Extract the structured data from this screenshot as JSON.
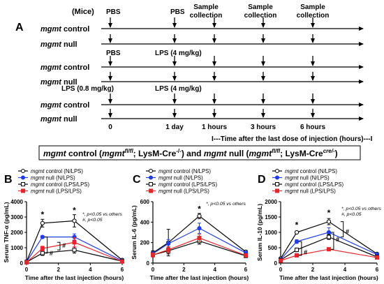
{
  "figure": {
    "panel_a_label": "A",
    "mice_label": "(Mice)",
    "rows": [
      {
        "name": "mgmt",
        "suffix": " control"
      },
      {
        "name": "mgmt",
        "suffix": " null"
      },
      {
        "name": "mgmt",
        "suffix": " control"
      },
      {
        "name": "mgmt",
        "suffix": " null"
      },
      {
        "name": "mgmt",
        "suffix": " control"
      },
      {
        "name": "mgmt",
        "suffix": " null"
      }
    ],
    "schedule_labels": {
      "pbs_top_1": "PBS",
      "pbs_top_2": "PBS",
      "sample_1a": "Sample",
      "sample_1b": "collection",
      "sample_2a": "Sample",
      "sample_2b": "collection",
      "sample_3a": "Sample",
      "sample_3b": "collection",
      "pbs_mid": "PBS",
      "lps_4_mid": "LPS (4 mg/kg)",
      "lps_08": "LPS (0.8 mg/kg)",
      "lps_4_bot": "LPS (4 mg/kg)"
    },
    "timepoints": [
      "0",
      "1 day",
      "1 hours",
      "3 hours",
      "6 hours"
    ],
    "time_axis_caption": "I---Time after the last dose of injection (hours)---I",
    "genotype_box": {
      "part1": "mgmt",
      "part2": " control (",
      "part3": "mgmt",
      "part4": "fl/fl",
      "part5": "; LysM-Cre",
      "part6": "-/-",
      "part7": ") and ",
      "part8": "mgmt",
      "part9": " null (",
      "part10": "mgmt",
      "part11": "fl/fl",
      "part12": "; LysM-Cre",
      "part13": "cre/-",
      "part14": ")"
    }
  },
  "legend": {
    "entries": [
      {
        "italic": "mgmt",
        "rest": " control (N/LPS)"
      },
      {
        "italic": "mgmt",
        "rest": " null (N/LPS)"
      },
      {
        "italic": "mgmt",
        "rest": " control (LPS/LPS)"
      },
      {
        "italic": "mgmt",
        "rest": " null (LPS/LPS)"
      }
    ]
  },
  "colors": {
    "control_N": "#000000",
    "null_N": "#1f3de6",
    "control_LPS": "#000000",
    "null_LPS": "#e6262b"
  },
  "chart_data": [
    {
      "type": "line",
      "panel": "B",
      "ylabel": "Serum TNF-α (pg/mL)",
      "xlabel": "Time after the last injection (hours)",
      "x": [
        0,
        1,
        3,
        6
      ],
      "xlim": [
        0,
        6
      ],
      "ylim": [
        0,
        4000
      ],
      "yticks": [
        "0",
        "1000",
        "2000",
        "3000",
        "4000"
      ],
      "xticks": [
        "0",
        "2",
        "4",
        "6"
      ],
      "series": [
        {
          "name": "mgmt control (N/LPS)",
          "values": [
            100,
            2600,
            2750,
            200
          ],
          "err": [
            60,
            250,
            400,
            40
          ],
          "marker": "circle-open"
        },
        {
          "name": "mgmt null (N/LPS)",
          "values": [
            80,
            1700,
            1700,
            150
          ],
          "err": [
            40,
            80,
            200,
            30
          ],
          "marker": "circle-filled"
        },
        {
          "name": "mgmt control (LPS/LPS)",
          "values": [
            60,
            650,
            850,
            120
          ],
          "err": [
            30,
            150,
            200,
            30
          ],
          "marker": "square-open"
        },
        {
          "name": "mgmt null (LPS/LPS)",
          "values": [
            50,
            950,
            1350,
            100
          ],
          "err": [
            30,
            150,
            300,
            30
          ],
          "marker": "square-filled"
        }
      ],
      "annotations": {
        "star": "*",
        "note1": "*, p<0.05 vs others",
        "note2": "#, p<0.05",
        "hash": "#"
      }
    },
    {
      "type": "line",
      "panel": "C",
      "ylabel": "Serum IL-6 (pg/mL)",
      "xlabel": "Time after the last injection (hours)",
      "x": [
        0,
        1,
        3,
        6
      ],
      "xlim": [
        0,
        6
      ],
      "ylim": [
        0,
        600
      ],
      "yticks": [
        "0",
        "200",
        "400",
        "600"
      ],
      "xticks": [
        "0",
        "2",
        "4",
        "6"
      ],
      "series": [
        {
          "name": "mgmt control (N/LPS)",
          "values": [
            100,
            200,
            460,
            110
          ],
          "err": [
            20,
            130,
            25,
            15
          ],
          "marker": "circle-open"
        },
        {
          "name": "mgmt null (N/LPS)",
          "values": [
            90,
            190,
            340,
            100
          ],
          "err": [
            20,
            40,
            50,
            15
          ],
          "marker": "circle-filled"
        },
        {
          "name": "mgmt control (LPS/LPS)",
          "values": [
            80,
            120,
            215,
            70
          ],
          "err": [
            20,
            30,
            30,
            15
          ],
          "marker": "square-open"
        },
        {
          "name": "mgmt null (LPS/LPS)",
          "values": [
            80,
            130,
            245,
            75
          ],
          "err": [
            20,
            30,
            35,
            15
          ],
          "marker": "square-filled"
        }
      ],
      "annotations": {
        "star": "*",
        "note1": "*, p<0.05 vs others"
      }
    },
    {
      "type": "line",
      "panel": "D",
      "ylabel": "Serum IL-10 (pg/mL)",
      "xlabel": "Time after the last injection (hours)",
      "x": [
        0,
        1,
        3,
        6
      ],
      "xlim": [
        0,
        6
      ],
      "ylim": [
        0,
        2000
      ],
      "yticks": [
        "0",
        "500",
        "1000",
        "1500",
        "2000"
      ],
      "xticks": [
        "0",
        "2",
        "4",
        "6"
      ],
      "series": [
        {
          "name": "mgmt control (N/LPS)",
          "values": [
            150,
            1000,
            1350,
            300
          ],
          "err": [
            30,
            40,
            100,
            30
          ],
          "marker": "circle-open"
        },
        {
          "name": "mgmt null (N/LPS)",
          "values": [
            120,
            700,
            1000,
            280
          ],
          "err": [
            30,
            60,
            150,
            30
          ],
          "marker": "circle-filled"
        },
        {
          "name": "mgmt control (LPS/LPS)",
          "values": [
            100,
            430,
            850,
            200
          ],
          "err": [
            20,
            60,
            80,
            30
          ],
          "marker": "square-open"
        },
        {
          "name": "mgmt null (LPS/LPS)",
          "values": [
            80,
            250,
            450,
            180
          ],
          "err": [
            20,
            40,
            30,
            20
          ],
          "marker": "square-filled"
        }
      ],
      "annotations": {
        "star": "*",
        "note1": "*, p<0.05 vs others",
        "note2": "#, p<0.05",
        "hash": "#"
      }
    }
  ]
}
